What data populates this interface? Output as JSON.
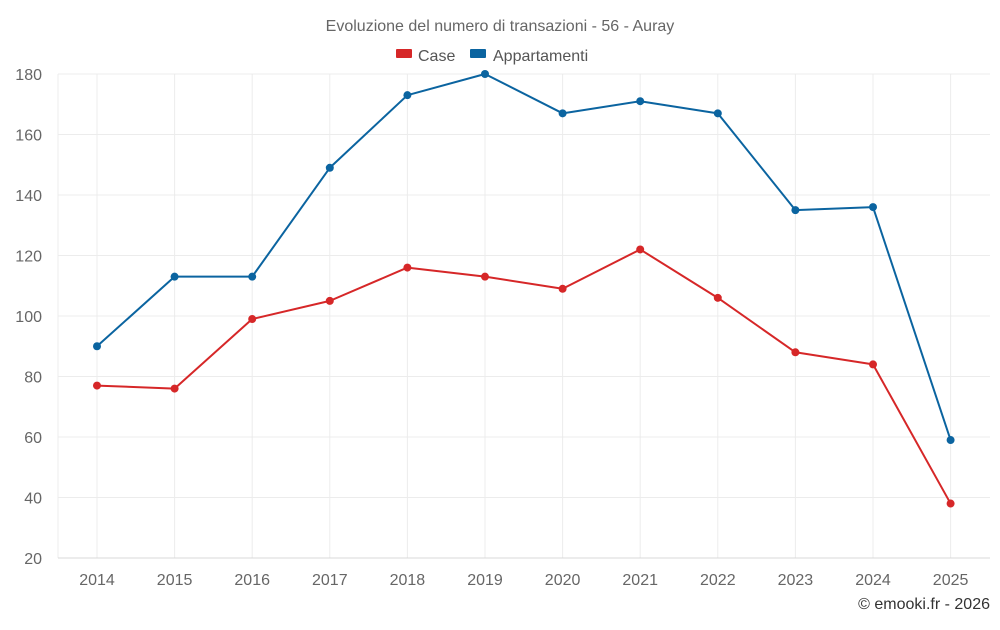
{
  "chart_data": {
    "type": "line",
    "title": "Evoluzione del numero di transazioni - 56 - Auray",
    "x": [
      "2014",
      "2015",
      "2016",
      "2017",
      "2018",
      "2019",
      "2020",
      "2021",
      "2022",
      "2023",
      "2024",
      "2025"
    ],
    "series": [
      {
        "name": "Case",
        "color": "#d62728",
        "values": [
          77,
          76,
          99,
          105,
          116,
          113,
          109,
          122,
          106,
          88,
          84,
          38
        ]
      },
      {
        "name": "Appartamenti",
        "color": "#0b64a0",
        "values": [
          90,
          113,
          113,
          149,
          173,
          180,
          167,
          171,
          167,
          135,
          136,
          59
        ]
      }
    ],
    "ylim": [
      20,
      180
    ],
    "yticks": [
      20,
      40,
      60,
      80,
      100,
      120,
      140,
      160,
      180
    ],
    "xlabel": "",
    "ylabel": "",
    "grid": true,
    "legend_position": "top-center"
  },
  "credit": "© emooki.fr - 2026"
}
